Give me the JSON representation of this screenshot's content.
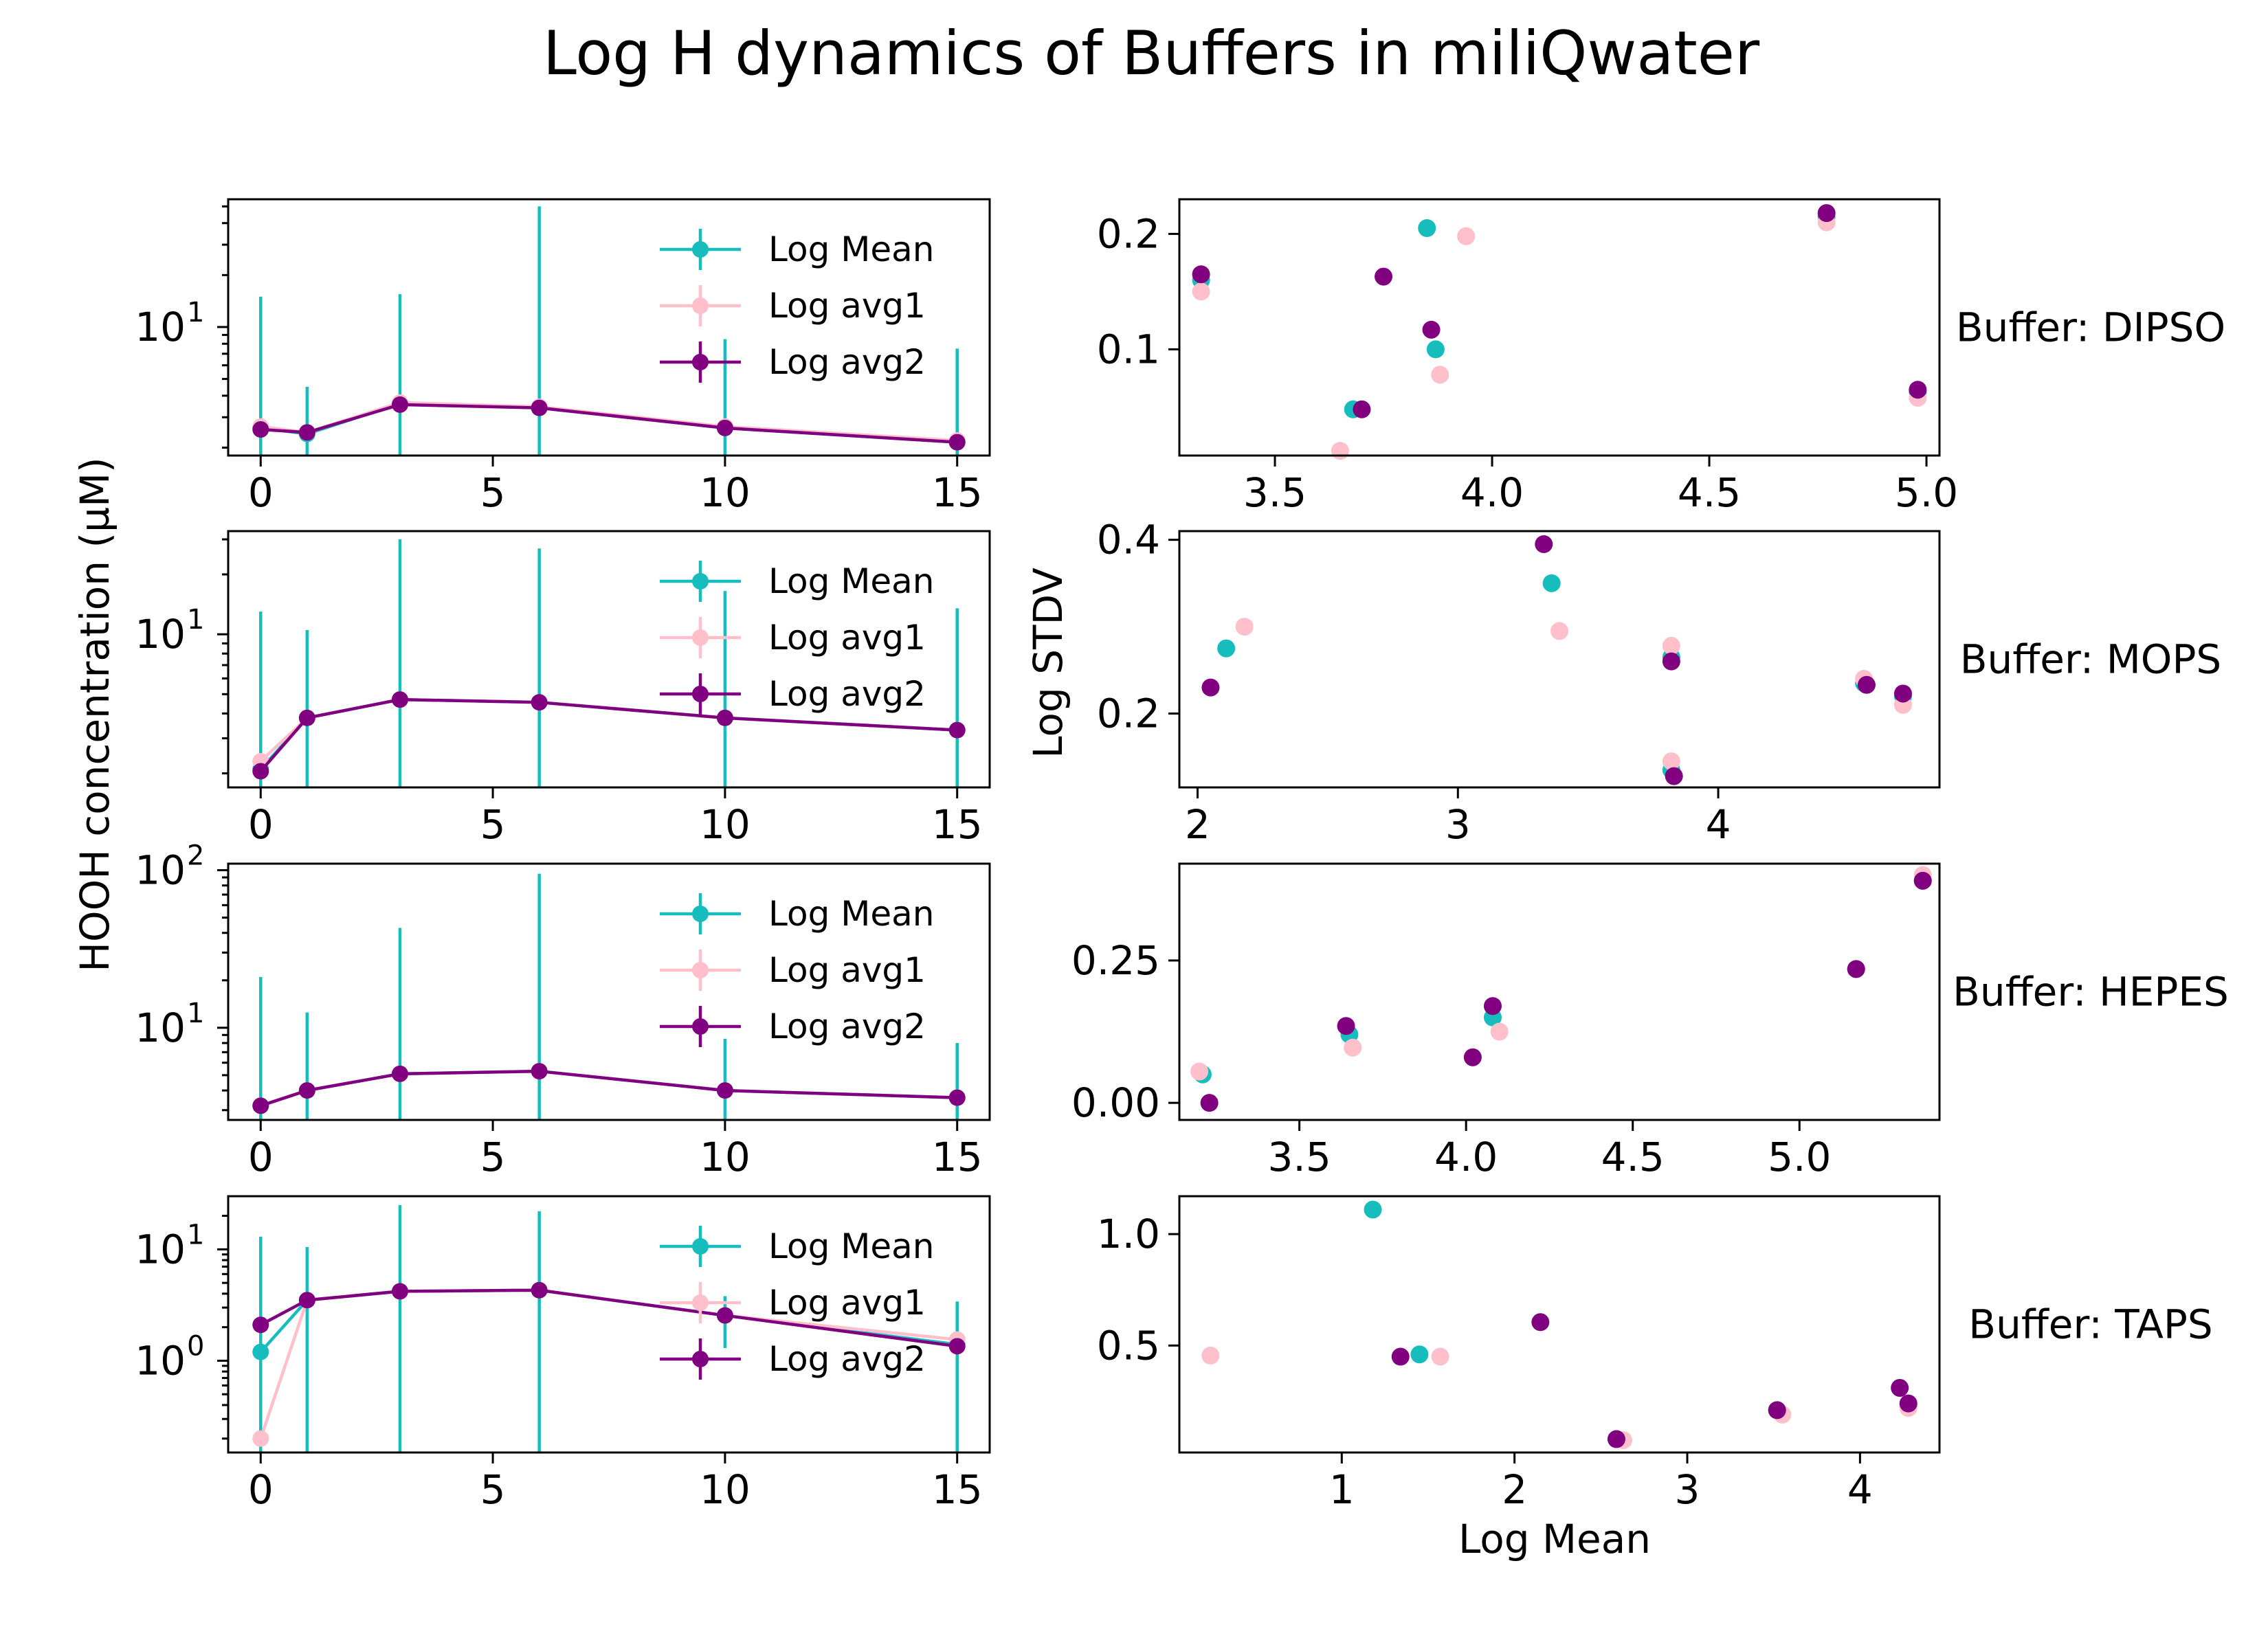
{
  "title": "Log  H dynamics of Buffers in miliQwater",
  "shared_ylabel_left": "HOOH concentration (µM)",
  "colors": {
    "mean": "#17bdbd",
    "avg1": "#ffc0cb",
    "avg2": "#800080"
  },
  "chart_data": [
    {
      "type": "line",
      "buffer": "DIPSO",
      "scale": "log",
      "x": [
        0,
        1,
        3,
        6,
        10,
        15
      ],
      "ylim": [
        1.8,
        55
      ],
      "xticks": [
        0,
        5,
        10,
        15
      ],
      "xlim": [
        -0.7,
        15.7
      ],
      "yticks_major": [
        {
          "v": 10,
          "label": "10",
          "exp": "1"
        }
      ],
      "series": [
        {
          "name": "Log Mean",
          "color": "#17bdbd",
          "values": [
            2.6,
            2.4,
            3.6,
            3.4,
            2.6,
            2.15
          ],
          "err_low": [
            1.8,
            1.8,
            1.8,
            1.8,
            1.8,
            1.8
          ],
          "err_high": [
            15,
            4.5,
            15.5,
            50,
            8.5,
            7.5
          ]
        },
        {
          "name": "Log avg1",
          "color": "#ffc0cb",
          "values": [
            2.65,
            2.45,
            3.65,
            3.45,
            2.65,
            2.2
          ]
        },
        {
          "name": "Log avg2",
          "color": "#800080",
          "values": [
            2.55,
            2.45,
            3.55,
            3.4,
            2.6,
            2.15
          ]
        }
      ],
      "legend": [
        "Log Mean",
        "Log avg1",
        "Log avg2"
      ]
    },
    {
      "type": "line",
      "buffer": "MOPS",
      "scale": "log",
      "x": [
        0,
        1,
        3,
        6,
        10,
        15
      ],
      "ylim": [
        1.7,
        33
      ],
      "xticks": [
        0,
        5,
        10,
        15
      ],
      "xlim": [
        -0.7,
        15.7
      ],
      "yticks_major": [
        {
          "v": 10,
          "label": "10",
          "exp": "1"
        }
      ],
      "series": [
        {
          "name": "Log Mean",
          "color": "#17bdbd",
          "values": [
            2.1,
            3.8,
            4.7,
            4.55,
            3.8,
            3.3
          ],
          "err_low": [
            1.7,
            1.7,
            1.7,
            1.7,
            1.7,
            1.7
          ],
          "err_high": [
            13,
            10.5,
            30,
            27,
            16.5,
            13.5
          ]
        },
        {
          "name": "Log avg1",
          "color": "#ffc0cb",
          "values": [
            2.3,
            3.8,
            4.7,
            4.55,
            3.8,
            3.3
          ]
        },
        {
          "name": "Log avg2",
          "color": "#800080",
          "values": [
            2.05,
            3.8,
            4.7,
            4.55,
            3.8,
            3.3
          ]
        }
      ],
      "legend": [
        "Log Mean",
        "Log avg1",
        "Log avg2"
      ]
    },
    {
      "type": "line",
      "buffer": "HEPES",
      "scale": "log",
      "x": [
        0,
        1,
        3,
        6,
        10,
        15
      ],
      "ylim": [
        2.6,
        110
      ],
      "xticks": [
        0,
        5,
        10,
        15
      ],
      "xlim": [
        -0.7,
        15.7
      ],
      "yticks_major": [
        {
          "v": 10,
          "label": "10",
          "exp": "1"
        },
        {
          "v": 100,
          "label": "10",
          "exp": "2"
        }
      ],
      "series": [
        {
          "name": "Log Mean",
          "color": "#17bdbd",
          "values": [
            3.2,
            4.0,
            5.1,
            5.3,
            4.0,
            3.6
          ],
          "err_low": [
            2.6,
            2.6,
            2.6,
            2.6,
            2.6,
            2.6
          ],
          "err_high": [
            21,
            12.5,
            43,
            95,
            8.5,
            8
          ]
        },
        {
          "name": "Log avg1",
          "color": "#ffc0cb",
          "values": [
            3.2,
            4.0,
            5.1,
            5.3,
            4.0,
            3.6
          ]
        },
        {
          "name": "Log avg2",
          "color": "#800080",
          "values": [
            3.2,
            4.0,
            5.1,
            5.3,
            4.0,
            3.6
          ]
        }
      ],
      "legend": [
        "Log Mean",
        "Log avg1",
        "Log avg2"
      ]
    },
    {
      "type": "line",
      "buffer": "TAPS",
      "scale": "log",
      "x": [
        0,
        1,
        3,
        6,
        10,
        15
      ],
      "ylim": [
        0.15,
        30
      ],
      "xticks": [
        0,
        5,
        10,
        15
      ],
      "xlim": [
        -0.7,
        15.7
      ],
      "yticks_major": [
        {
          "v": 1,
          "label": "10",
          "exp": "0"
        },
        {
          "v": 10,
          "label": "10",
          "exp": "1"
        }
      ],
      "series": [
        {
          "name": "Log Mean",
          "color": "#17bdbd",
          "values": [
            1.2,
            3.5,
            4.2,
            4.3,
            2.55,
            1.4
          ],
          "err_low": [
            0.15,
            0.15,
            0.15,
            0.15,
            1.3,
            0.15
          ],
          "err_high": [
            13,
            10.5,
            25,
            22,
            3.8,
            3.4
          ]
        },
        {
          "name": "Log avg1",
          "color": "#ffc0cb",
          "values": [
            0.2,
            3.5,
            4.2,
            4.3,
            2.55,
            1.55
          ]
        },
        {
          "name": "Log avg2",
          "color": "#800080",
          "values": [
            2.1,
            3.5,
            4.2,
            4.3,
            2.55,
            1.35
          ]
        }
      ],
      "legend": [
        "Log Mean",
        "Log avg1",
        "Log avg2"
      ]
    },
    {
      "type": "scatter",
      "buffer": "DIPSO",
      "label": "Buffer: DIPSO",
      "xlim": [
        3.28,
        5.03
      ],
      "ylim": [
        0.008,
        0.23
      ],
      "xticks": [
        3.5,
        4.0,
        4.5,
        5.0
      ],
      "xticklabels": [
        "3.5",
        "4.0",
        "4.5",
        "5.0"
      ],
      "yticks": [
        0.1,
        0.2
      ],
      "yticklabels": [
        "0.1",
        "0.2"
      ],
      "series": [
        {
          "name": "Log Mean",
          "color": "#17bdbd",
          "points": [
            [
              3.33,
              0.16
            ],
            [
              3.68,
              0.048
            ],
            [
              3.85,
              0.205
            ],
            [
              3.87,
              0.1
            ],
            [
              4.77,
              0.215
            ],
            [
              4.98,
              0.063
            ]
          ]
        },
        {
          "name": "Log avg1",
          "color": "#ffc0cb",
          "points": [
            [
              3.33,
              0.15
            ],
            [
              3.65,
              0.012
            ],
            [
              3.88,
              0.078
            ],
            [
              3.94,
              0.198
            ],
            [
              4.77,
              0.21
            ],
            [
              4.98,
              0.058
            ]
          ]
        },
        {
          "name": "Log avg2",
          "color": "#800080",
          "points": [
            [
              3.33,
              0.165
            ],
            [
              3.7,
              0.048
            ],
            [
              3.75,
              0.163
            ],
            [
              3.86,
              0.117
            ],
            [
              4.77,
              0.218
            ],
            [
              4.98,
              0.065
            ]
          ]
        }
      ]
    },
    {
      "type": "scatter",
      "buffer": "MOPS",
      "label": "Buffer: MOPS",
      "xlim": [
        1.93,
        4.85
      ],
      "ylim": [
        0.115,
        0.41
      ],
      "xticks": [
        2,
        3,
        4
      ],
      "xticklabels": [
        "2",
        "3",
        "4"
      ],
      "yticks": [
        0.2,
        0.4
      ],
      "yticklabels": [
        "0.2",
        "0.4"
      ],
      "series": [
        {
          "name": "Log Mean",
          "color": "#17bdbd",
          "points": [
            [
              2.11,
              0.275
            ],
            [
              3.36,
              0.35
            ],
            [
              3.82,
              0.265
            ],
            [
              3.82,
              0.135
            ],
            [
              4.56,
              0.235
            ],
            [
              4.71,
              0.22
            ]
          ]
        },
        {
          "name": "Log avg1",
          "color": "#ffc0cb",
          "points": [
            [
              2.18,
              0.3
            ],
            [
              3.39,
              0.295
            ],
            [
              3.82,
              0.278
            ],
            [
              3.82,
              0.145
            ],
            [
              4.56,
              0.24
            ],
            [
              4.71,
              0.21
            ]
          ]
        },
        {
          "name": "Log avg2",
          "color": "#800080",
          "points": [
            [
              2.05,
              0.23
            ],
            [
              3.33,
              0.395
            ],
            [
              3.82,
              0.26
            ],
            [
              3.83,
              0.128
            ],
            [
              4.57,
              0.233
            ],
            [
              4.71,
              0.223
            ]
          ]
        }
      ]
    },
    {
      "type": "scatter",
      "buffer": "HEPES",
      "label": "Buffer: HEPES",
      "xlim": [
        3.14,
        5.42
      ],
      "ylim": [
        -0.03,
        0.42
      ],
      "xticks": [
        3.5,
        4.0,
        4.5,
        5.0
      ],
      "xticklabels": [
        "3.5",
        "4.0",
        "4.5",
        "5.0"
      ],
      "yticks": [
        0.0,
        0.25
      ],
      "yticklabels": [
        "0.00",
        "0.25"
      ],
      "series": [
        {
          "name": "Log Mean",
          "color": "#17bdbd",
          "points": [
            [
              3.21,
              0.05
            ],
            [
              3.65,
              0.12
            ],
            [
              4.08,
              0.15
            ],
            [
              5.17,
              0.235
            ],
            [
              5.37,
              0.39
            ]
          ]
        },
        {
          "name": "Log avg1",
          "color": "#ffc0cb",
          "points": [
            [
              3.2,
              0.055
            ],
            [
              3.66,
              0.097
            ],
            [
              4.1,
              0.125
            ],
            [
              5.37,
              0.4
            ]
          ]
        },
        {
          "name": "Log avg2",
          "color": "#800080",
          "points": [
            [
              3.23,
              0.0
            ],
            [
              3.64,
              0.135
            ],
            [
              4.02,
              0.08
            ],
            [
              4.08,
              0.17
            ],
            [
              5.17,
              0.235
            ],
            [
              5.37,
              0.39
            ]
          ]
        }
      ]
    },
    {
      "type": "scatter",
      "buffer": "TAPS",
      "label": "Buffer: TAPS",
      "xlim": [
        0.06,
        4.46
      ],
      "ylim": [
        0.02,
        1.17
      ],
      "xticks": [
        1,
        2,
        3,
        4
      ],
      "xticklabels": [
        "1",
        "2",
        "3",
        "4"
      ],
      "yticks": [
        0.5,
        1.0
      ],
      "yticklabels": [
        "0.5",
        "1.0"
      ],
      "series": [
        {
          "name": "Log Mean",
          "color": "#17bdbd",
          "points": [
            [
              1.18,
              1.11
            ],
            [
              1.45,
              0.46
            ],
            [
              2.59,
              0.08
            ],
            [
              3.52,
              0.21
            ],
            [
              4.28,
              0.23
            ]
          ]
        },
        {
          "name": "Log avg1",
          "color": "#ffc0cb",
          "points": [
            [
              0.24,
              0.455
            ],
            [
              1.57,
              0.45
            ],
            [
              2.63,
              0.075
            ],
            [
              3.55,
              0.19
            ],
            [
              4.28,
              0.22
            ]
          ]
        },
        {
          "name": "Log avg2",
          "color": "#800080",
          "points": [
            [
              1.34,
              0.45
            ],
            [
              2.15,
              0.605
            ],
            [
              2.59,
              0.08
            ],
            [
              3.52,
              0.21
            ],
            [
              4.23,
              0.31
            ],
            [
              4.28,
              0.24
            ]
          ]
        }
      ]
    }
  ],
  "right_ylabel": "Log STDV",
  "right_xlabel": "Log Mean"
}
